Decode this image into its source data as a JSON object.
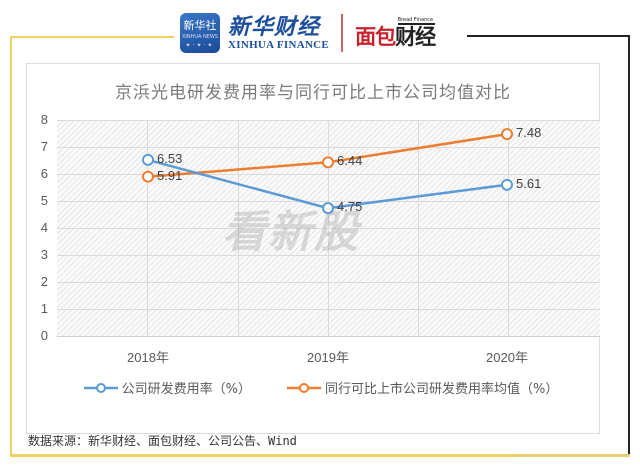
{
  "header": {
    "xinhua_badge": "新华社",
    "xinhua_badge_sub": "XINHUA NEWS",
    "xinhua_cn": "新华财经",
    "xinhua_en": "XINHUA FINANCE",
    "bread_sub": "Bread Finance",
    "bread_main_red": "面包",
    "bread_main_dark": "财经"
  },
  "watermark": "看新股",
  "colors": {
    "company": "#5b9bd5",
    "peers": "#ed7d31",
    "frame_yellow": "#f0d060",
    "frame_black": "#222222"
  },
  "chart_data": {
    "type": "line",
    "title": "京浜光电研发费用率与同行可比上市公司均值对比",
    "categories": [
      "2018年",
      "2019年",
      "2020年"
    ],
    "series": [
      {
        "name": "公司研发费用率（%）",
        "values": [
          6.53,
          4.75,
          5.61
        ],
        "color": "#5b9bd5"
      },
      {
        "name": "同行可比上市公司研发费用率均值（%）",
        "values": [
          5.91,
          6.44,
          7.48
        ],
        "color": "#ed7d31"
      }
    ],
    "xlabel": "",
    "ylabel": "",
    "ylim": [
      0,
      8
    ],
    "yticks": [
      "0",
      "1",
      "2",
      "3",
      "4",
      "5",
      "6",
      "7",
      "8"
    ],
    "grid": true,
    "legend_position": "bottom",
    "data_labels": [
      "6.53",
      "4.75",
      "5.61",
      "5.91",
      "6.44",
      "7.48"
    ]
  },
  "source": "数据来源：新华财经、面包财经、公司公告、Wind"
}
